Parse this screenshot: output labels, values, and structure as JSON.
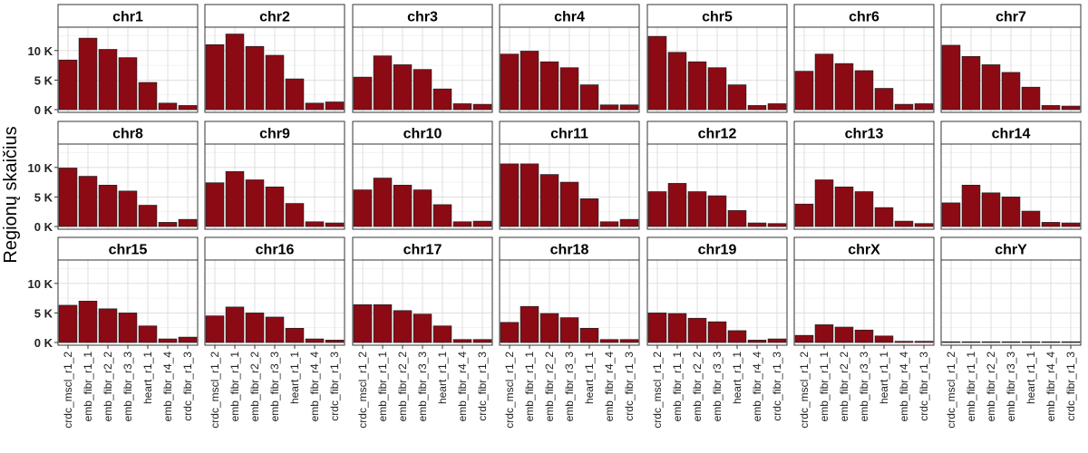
{
  "chart_data": {
    "type": "bar",
    "facet": "panels",
    "ylabel": "Regionų skaičius",
    "xlabel": "",
    "ylim": [
      0,
      13500
    ],
    "y_ticks": [
      0,
      5000,
      10000
    ],
    "y_tick_labels": [
      "0 K",
      "5 K",
      "10 K"
    ],
    "bar_color": "#8B0A14",
    "categories": [
      "crdc_mscl_r1_2",
      "emb_fibr_r1_1",
      "emb_fibr_r2_2",
      "emb_fibr_r3_3",
      "heart_r1_1",
      "emb_fibr_r4_4",
      "crdc_fibr_r1_3"
    ],
    "panels": [
      {
        "name": "chr1",
        "values": [
          8400,
          12100,
          10200,
          8800,
          4600,
          1100,
          700
        ]
      },
      {
        "name": "chr2",
        "values": [
          11000,
          12800,
          10700,
          9200,
          5200,
          1100,
          1300
        ]
      },
      {
        "name": "chr3",
        "values": [
          5500,
          9100,
          7600,
          6800,
          3500,
          1000,
          900
        ]
      },
      {
        "name": "chr4",
        "values": [
          9400,
          9900,
          8100,
          7100,
          4200,
          800,
          800
        ]
      },
      {
        "name": "chr5",
        "values": [
          12400,
          9700,
          8100,
          7100,
          4200,
          700,
          1000
        ]
      },
      {
        "name": "chr6",
        "values": [
          6500,
          9400,
          7800,
          6600,
          3600,
          900,
          1000
        ]
      },
      {
        "name": "chr7",
        "values": [
          10900,
          9000,
          7600,
          6300,
          3800,
          700,
          600
        ]
      },
      {
        "name": "chr8",
        "values": [
          9900,
          8500,
          7000,
          6000,
          3600,
          700,
          1200
        ]
      },
      {
        "name": "chr9",
        "values": [
          7400,
          9300,
          7900,
          6700,
          3900,
          800,
          600
        ]
      },
      {
        "name": "chr10",
        "values": [
          6200,
          8200,
          7000,
          6200,
          3700,
          800,
          900
        ]
      },
      {
        "name": "chr11",
        "values": [
          10600,
          10600,
          8800,
          7500,
          4700,
          800,
          1200
        ]
      },
      {
        "name": "chr12",
        "values": [
          5900,
          7300,
          5900,
          5200,
          2700,
          600,
          500
        ]
      },
      {
        "name": "chr13",
        "values": [
          3800,
          7900,
          6700,
          5900,
          3200,
          900,
          500
        ]
      },
      {
        "name": "chr14",
        "values": [
          4000,
          7000,
          5700,
          5000,
          2600,
          700,
          600
        ]
      },
      {
        "name": "chr15",
        "values": [
          6300,
          7000,
          5700,
          5000,
          2800,
          600,
          900
        ]
      },
      {
        "name": "chr16",
        "values": [
          4500,
          6000,
          5000,
          4300,
          2400,
          600,
          400
        ]
      },
      {
        "name": "chr17",
        "values": [
          6400,
          6400,
          5400,
          4800,
          2800,
          500,
          500
        ]
      },
      {
        "name": "chr18",
        "values": [
          3400,
          6100,
          4900,
          4200,
          2400,
          500,
          500
        ]
      },
      {
        "name": "chr19",
        "values": [
          5000,
          4900,
          4100,
          3500,
          2000,
          400,
          600
        ]
      },
      {
        "name": "chrX",
        "values": [
          1200,
          3000,
          2600,
          2100,
          1100,
          200,
          200
        ]
      },
      {
        "name": "chrY",
        "values": [
          40,
          40,
          40,
          40,
          30,
          20,
          20
        ]
      }
    ]
  }
}
